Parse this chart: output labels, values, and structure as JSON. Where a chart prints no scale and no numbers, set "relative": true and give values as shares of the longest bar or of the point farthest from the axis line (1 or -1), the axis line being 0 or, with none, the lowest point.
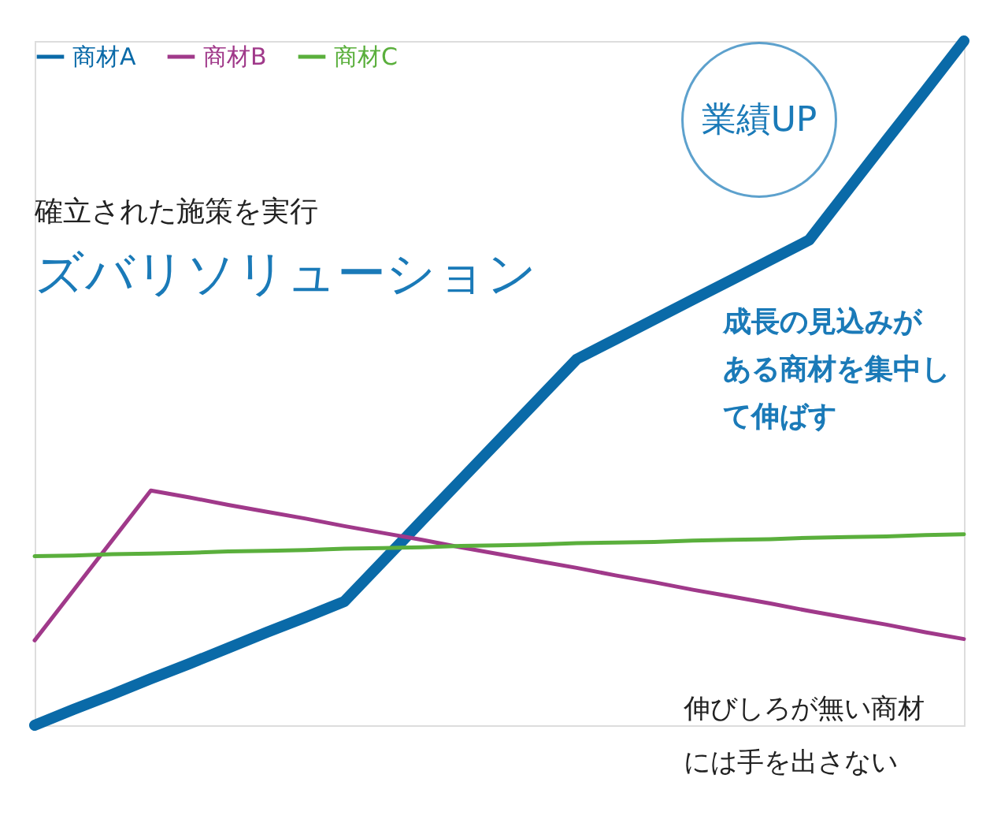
{
  "chart_data": {
    "type": "line",
    "relative": true,
    "title": "ズバリソリューション",
    "subtitle": "確立された施策を実行",
    "legend": "top left",
    "categories": [
      null,
      null,
      null,
      null,
      null,
      null,
      null,
      null,
      null,
      null,
      null,
      null,
      null,
      null,
      null,
      null,
      null,
      null,
      null,
      null,
      null,
      null,
      null,
      null,
      null
    ],
    "series": [
      {
        "name": "商材A",
        "color": "#0a6aa8",
        "values": [
          0,
          0.023,
          0.045,
          0.068,
          0.09,
          0.113,
          0.136,
          0.158,
          0.181,
          0.24,
          0.299,
          0.358,
          0.417,
          0.476,
          0.535,
          0.564,
          0.593,
          0.622,
          0.651,
          0.68,
          0.709,
          0.782,
          0.855,
          0.927,
          1
        ]
      },
      {
        "name": "商材B",
        "color": "#a0398a",
        "values": [
          0.124,
          0.197,
          0.27,
          0.343,
          0.333,
          0.322,
          0.312,
          0.302,
          0.291,
          0.281,
          0.271,
          0.26,
          0.25,
          0.24,
          0.23,
          0.219,
          0.209,
          0.198,
          0.188,
          0.178,
          0.167,
          0.157,
          0.147,
          0.136,
          0.126
        ]
      },
      {
        "name": "商材C",
        "color": "#5aaf3c",
        "values": [
          0.247,
          0.248,
          0.25,
          0.251,
          0.252,
          0.254,
          0.255,
          0.256,
          0.258,
          0.259,
          0.26,
          0.262,
          0.263,
          0.264,
          0.266,
          0.267,
          0.268,
          0.27,
          0.271,
          0.272,
          0.274,
          0.275,
          0.276,
          0.278,
          0.279
        ]
      }
    ],
    "annotations": [
      "業績UP",
      "成長の見込みがある商材を集中して伸ばす",
      "伸びしろが無い商材には手を出さない"
    ]
  }
}
